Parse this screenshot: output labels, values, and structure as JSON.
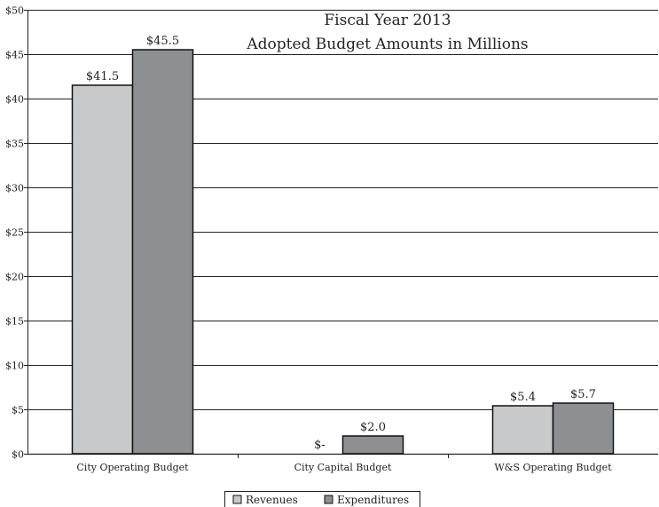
{
  "chart_data": {
    "type": "bar",
    "title": "Fiscal Year 2013",
    "subtitle": "Adopted Budget Amounts in Millions",
    "categories": [
      "City Operating Budget",
      "City Capital Budget",
      "W&S Operating Budget"
    ],
    "series": [
      {
        "name": "Revenues",
        "values": [
          41.5,
          0,
          5.4
        ],
        "labels": [
          "$41.5",
          "$-",
          "$5.4"
        ],
        "color": "#c8c9cb"
      },
      {
        "name": "Expenditures",
        "values": [
          45.5,
          2.0,
          5.7
        ],
        "labels": [
          "$45.5",
          "$2.0",
          "$5.7"
        ],
        "color": "#8e8f92"
      }
    ],
    "ylim": [
      0,
      50
    ],
    "yticks": [
      0,
      5,
      10,
      15,
      20,
      25,
      30,
      35,
      40,
      45,
      50
    ],
    "ytick_labels": [
      "$0",
      "$5",
      "$10",
      "$15",
      "$20",
      "$25",
      "$30",
      "$35",
      "$40",
      "$45",
      "$50"
    ],
    "grid": true,
    "legend_position": "bottom-center"
  }
}
